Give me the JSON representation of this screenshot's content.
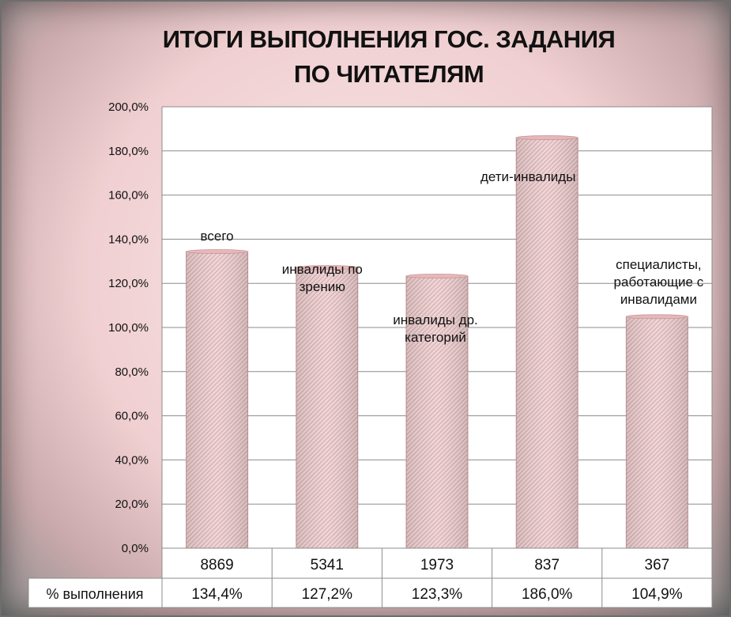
{
  "chart_data": {
    "type": "bar",
    "title": "ИТОГИ ВЫПОЛНЕНИЯ ГОС. ЗАДАНИЯ ПО ЧИТАТЕЛЯМ",
    "categories": [
      "8869",
      "5341",
      "1973",
      "837",
      "367"
    ],
    "data_labels": [
      "всего",
      "инвалиды по зрению",
      "инвалиды др. категорий",
      "дети-инвалиды",
      "специалисты, работающие с инвалидами"
    ],
    "series": [
      {
        "name": "% выполнения",
        "values": [
          134.4,
          127.2,
          123.3,
          186.0,
          104.9
        ]
      }
    ],
    "table_values": [
      "134,4%",
      "127,2%",
      "123,3%",
      "186,0%",
      "104,9%"
    ],
    "yticks": [
      "0,0%",
      "20,0%",
      "40,0%",
      "60,0%",
      "80,0%",
      "100,0%",
      "120,0%",
      "140,0%",
      "160,0%",
      "180,0%",
      "200,0%"
    ],
    "ylim": [
      0,
      200
    ],
    "grid": true,
    "bar_color": "#e7b8ba"
  }
}
